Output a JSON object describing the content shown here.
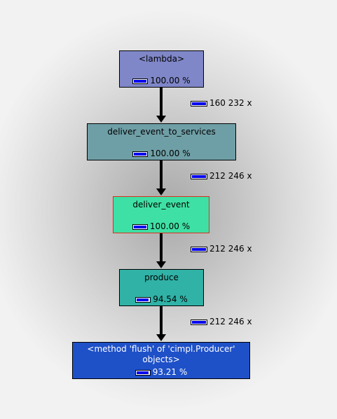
{
  "nodes": [
    {
      "title": "<lambda>",
      "percent_label": "100.00 %",
      "percent_value": 1.0,
      "color": "#7f87c8"
    },
    {
      "title": "deliver_event_to_services",
      "percent_label": "100.00 %",
      "percent_value": 1.0,
      "color": "#6f9fa6"
    },
    {
      "title": "deliver_event",
      "percent_label": "100.00 %",
      "percent_value": 1.0,
      "color": "#3fe0a5"
    },
    {
      "title": "produce",
      "percent_label": "94.54 %",
      "percent_value": 0.9454,
      "color": "#30b2a6"
    },
    {
      "title": "<method 'flush' of 'cimpl.Producer' objects>",
      "percent_label": "93.21 %",
      "percent_value": 0.9321,
      "color": "#1e50c8"
    }
  ],
  "edges": [
    {
      "label": "160 232 x"
    },
    {
      "label": "212 246 x"
    },
    {
      "label": "212 246 x"
    },
    {
      "label": "212 246 x"
    }
  ],
  "colors": {
    "bar_fill": "#0000ee",
    "highlight_border": "#d83020"
  }
}
